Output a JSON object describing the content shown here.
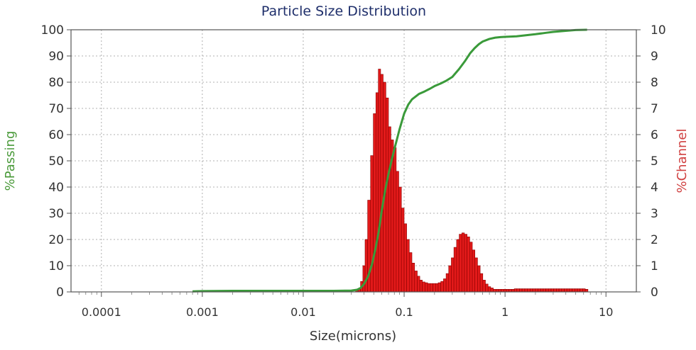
{
  "chart_data": {
    "type": "bar+line",
    "title": "Particle Size Distribution",
    "xlabel": "Size(microns)",
    "ylabel_left": "%Passing",
    "ylabel_right": "%Channel",
    "x_scale": "log",
    "xlim": [
      5e-05,
      20
    ],
    "ylim_left": [
      0,
      100
    ],
    "ylim_right": [
      0,
      10
    ],
    "x_ticks": [
      {
        "value": 0.0001,
        "label": "0.0001"
      },
      {
        "value": 0.001,
        "label": "0.001"
      },
      {
        "value": 0.01,
        "label": "0.01"
      },
      {
        "value": 0.1,
        "label": "0.1"
      },
      {
        "value": 1,
        "label": "1"
      },
      {
        "value": 10,
        "label": "10"
      }
    ],
    "y_left_ticks": [
      0,
      10,
      20,
      30,
      40,
      50,
      60,
      70,
      80,
      90,
      100
    ],
    "y_right_ticks": [
      0,
      1,
      2,
      3,
      4,
      5,
      6,
      7,
      8,
      9,
      10
    ],
    "grid": true,
    "colors": {
      "passing_line": "#3a9a3a",
      "channel_bars": "#e31a1a",
      "channel_bar_edge": "#8b0000",
      "left_label": "#4a9a3a",
      "right_label": "#d04040",
      "grid": "#b0b0b0"
    },
    "series": [
      {
        "kind": "bar",
        "axis": "right",
        "size": [
          0.034,
          0.036,
          0.038,
          0.04,
          0.042,
          0.045,
          0.048,
          0.051,
          0.054,
          0.057,
          0.06,
          0.064,
          0.068,
          0.072,
          0.076,
          0.081,
          0.086,
          0.091,
          0.097,
          0.103,
          0.109,
          0.116,
          0.123,
          0.131,
          0.139,
          0.147,
          0.156,
          0.166,
          0.176,
          0.187,
          0.199,
          0.211,
          0.224,
          0.238,
          0.253,
          0.268,
          0.285,
          0.302,
          0.321,
          0.341,
          0.362,
          0.384,
          0.408,
          0.433,
          0.46,
          0.488,
          0.518,
          0.55,
          0.584,
          0.62,
          0.659,
          0.699,
          0.742,
          0.788,
          0.837,
          0.889,
          0.944,
          1.0,
          1.06,
          1.13,
          1.2,
          1.27,
          1.35,
          1.43,
          1.52,
          1.62,
          1.72,
          1.82,
          1.94,
          2.06,
          2.18,
          2.32,
          2.46,
          2.61,
          2.77,
          2.95,
          3.13,
          3.32,
          3.53,
          3.75,
          3.98,
          4.22,
          4.48,
          4.76,
          5.06,
          5.37,
          5.7,
          6.05,
          6.43
        ],
        "values": [
          0.05,
          0.1,
          0.4,
          1.0,
          2.0,
          3.5,
          5.2,
          6.8,
          7.6,
          8.5,
          8.3,
          8.0,
          7.4,
          6.3,
          5.8,
          5.5,
          4.6,
          4.0,
          3.2,
          2.6,
          2.0,
          1.5,
          1.1,
          0.8,
          0.6,
          0.45,
          0.38,
          0.35,
          0.32,
          0.32,
          0.32,
          0.32,
          0.35,
          0.4,
          0.5,
          0.7,
          1.0,
          1.3,
          1.7,
          2.0,
          2.2,
          2.25,
          2.2,
          2.1,
          1.9,
          1.6,
          1.3,
          1.0,
          0.7,
          0.45,
          0.3,
          0.2,
          0.15,
          0.1,
          0.1,
          0.1,
          0.1,
          0.1,
          0.1,
          0.1,
          0.1,
          0.12,
          0.12,
          0.12,
          0.12,
          0.12,
          0.12,
          0.12,
          0.12,
          0.12,
          0.12,
          0.12,
          0.12,
          0.12,
          0.12,
          0.12,
          0.12,
          0.12,
          0.12,
          0.12,
          0.12,
          0.12,
          0.12,
          0.12,
          0.12,
          0.12,
          0.12,
          0.12,
          0.1
        ]
      },
      {
        "kind": "line",
        "axis": "left",
        "x": [
          0.0008,
          0.001,
          0.002,
          0.005,
          0.01,
          0.02,
          0.03,
          0.034,
          0.037,
          0.04,
          0.044,
          0.048,
          0.052,
          0.056,
          0.06,
          0.065,
          0.07,
          0.076,
          0.082,
          0.09,
          0.1,
          0.11,
          0.12,
          0.14,
          0.16,
          0.18,
          0.2,
          0.23,
          0.26,
          0.3,
          0.35,
          0.4,
          0.45,
          0.5,
          0.55,
          0.6,
          0.7,
          0.8,
          0.9,
          1.0,
          1.3,
          1.7,
          2.0,
          2.5,
          3.0,
          4.0,
          5.0,
          6.5
        ],
        "y": [
          0.2,
          0.3,
          0.4,
          0.4,
          0.4,
          0.4,
          0.5,
          0.8,
          1.5,
          3.0,
          6.0,
          10.5,
          16.5,
          23.0,
          31.0,
          39.0,
          45.0,
          51.0,
          56.0,
          62.0,
          68.0,
          71.5,
          73.5,
          75.5,
          76.5,
          77.5,
          78.5,
          79.5,
          80.5,
          82.0,
          85.0,
          88.0,
          91.0,
          93.0,
          94.5,
          95.5,
          96.5,
          97.0,
          97.2,
          97.3,
          97.5,
          98.0,
          98.3,
          98.8,
          99.2,
          99.6,
          99.9,
          100.0
        ]
      }
    ]
  }
}
